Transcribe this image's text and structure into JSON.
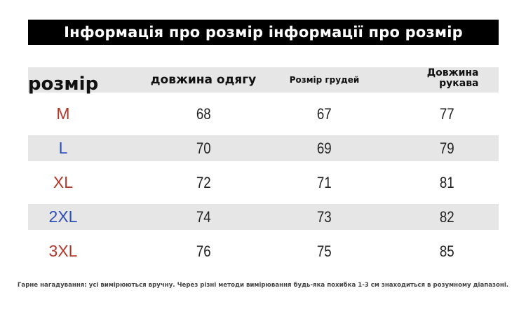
{
  "title": "Інформація про розмір інформації про розмір",
  "table": {
    "headers": [
      "розмір",
      "довжина одягу",
      "Розмір грудей",
      "Довжина рукава"
    ],
    "rows": [
      {
        "size": "M",
        "color": "#b2372b",
        "length": "68",
        "chest": "67",
        "sleeve": "77"
      },
      {
        "size": "L",
        "color": "#2e4fb8",
        "length": "70",
        "chest": "69",
        "sleeve": "79"
      },
      {
        "size": "XL",
        "color": "#b2372b",
        "length": "72",
        "chest": "71",
        "sleeve": "81"
      },
      {
        "size": "2XL",
        "color": "#2e4fb8",
        "length": "74",
        "chest": "73",
        "sleeve": "82"
      },
      {
        "size": "3XL",
        "color": "#b2372b",
        "length": "76",
        "chest": "75",
        "sleeve": "85"
      }
    ]
  },
  "note": "Гарне нагадування: усі вимірюються вручну. Через різні методи вимірювання будь-яка похибка 1-3 см знаходиться в розумному діапазоні."
}
